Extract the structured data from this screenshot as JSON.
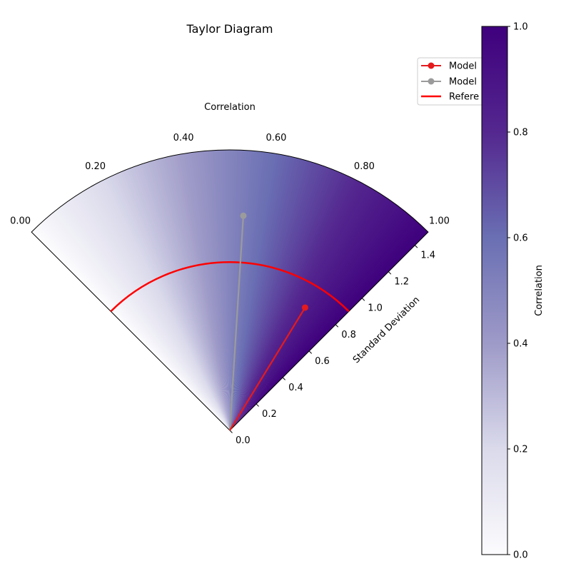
{
  "chart_data": {
    "type": "taylor-diagram",
    "title": "Taylor Diagram",
    "correlation_axis_label": "Correlation",
    "std_axis_label": "Standard Deviation",
    "correlation_ticks": [
      "0.00",
      "0.20",
      "0.40",
      "0.60",
      "0.80",
      "1.00"
    ],
    "std_ticks": [
      "0.0",
      "0.2",
      "0.4",
      "0.6",
      "0.8",
      "1.0",
      "1.2",
      "1.4"
    ],
    "std_range": [
      0,
      1.5
    ],
    "correlation_range": [
      0,
      1
    ],
    "reference_std": 0.9,
    "models": [
      {
        "label": "Model",
        "std": 1.15,
        "correlation": 0.54,
        "color": "#9b9b9b"
      },
      {
        "label": "Model",
        "std": 0.77,
        "correlation": 0.85,
        "color": "#e41a1c"
      }
    ],
    "reference": {
      "label": "Refere",
      "color": "#ff0000"
    },
    "colorbar": {
      "label": "Correlation",
      "ticks": [
        "0.0",
        "0.2",
        "0.4",
        "0.6",
        "0.8",
        "1.0"
      ],
      "range": [
        0,
        1
      ],
      "colors": [
        "#fcfbfd",
        "#dadaeb",
        "#9e9ac8",
        "#6a6fb3",
        "#54278f",
        "#3f007d"
      ]
    },
    "legend_position": "top-right"
  }
}
